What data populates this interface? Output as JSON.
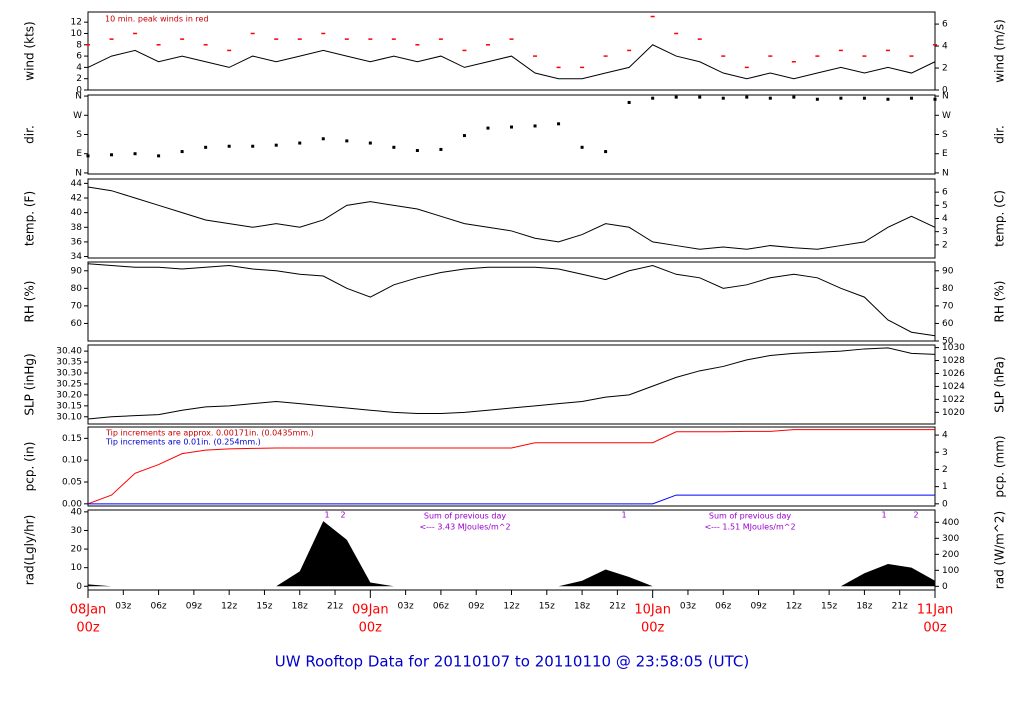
{
  "title": "UW Rooftop Data for 20110107  to  20110110 @ 23:58:05  (UTC)",
  "x": [
    0,
    2,
    4,
    6,
    8,
    10,
    12,
    14,
    16,
    18,
    20,
    22,
    24,
    26,
    28,
    30,
    32,
    34,
    36,
    38,
    40,
    42,
    44,
    46,
    48,
    50,
    52,
    54,
    56,
    58,
    60,
    62,
    64,
    66,
    68,
    70,
    72
  ],
  "xlim": [
    0,
    72
  ],
  "xticks": [
    {
      "value": 3,
      "label": "03z"
    },
    {
      "value": 6,
      "label": "06z"
    },
    {
      "value": 9,
      "label": "09z"
    },
    {
      "value": 12,
      "label": "12z"
    },
    {
      "value": 15,
      "label": "15z"
    },
    {
      "value": 18,
      "label": "18z"
    },
    {
      "value": 21,
      "label": "21z"
    },
    {
      "value": 27,
      "label": "03z"
    },
    {
      "value": 30,
      "label": "06z"
    },
    {
      "value": 33,
      "label": "09z"
    },
    {
      "value": 36,
      "label": "12z"
    },
    {
      "value": 39,
      "label": "15z"
    },
    {
      "value": 42,
      "label": "18z"
    },
    {
      "value": 45,
      "label": "21z"
    },
    {
      "value": 51,
      "label": "03z"
    },
    {
      "value": 54,
      "label": "06z"
    },
    {
      "value": 57,
      "label": "09z"
    },
    {
      "value": 60,
      "label": "12z"
    },
    {
      "value": 63,
      "label": "15z"
    },
    {
      "value": 66,
      "label": "18z"
    },
    {
      "value": 69,
      "label": "21z"
    }
  ],
  "day_ticks": [
    {
      "value": 0,
      "date": "08Jan",
      "hour": "00z"
    },
    {
      "value": 24,
      "date": "09Jan",
      "hour": "00z"
    },
    {
      "value": 48,
      "date": "10Jan",
      "hour": "00z"
    },
    {
      "value": 72,
      "date": "11Jan",
      "hour": "00z"
    }
  ],
  "chart_data": [
    {
      "type": "line",
      "ylabel": "wind (kts)",
      "y2label": "wind (m/s)",
      "ylim": [
        0,
        13.8
      ],
      "yticks": [
        0,
        2,
        4,
        6,
        8,
        10,
        12
      ],
      "y2lim": [
        0,
        7.1
      ],
      "y2ticks": [
        0,
        2,
        4,
        6
      ],
      "annotations": [
        {
          "text": "10 min. peak winds in red",
          "color": "#cc0000"
        }
      ],
      "series": [
        {
          "name": "wind",
          "style": "line",
          "color": "#000000",
          "values": [
            4,
            6,
            7,
            5,
            6,
            5,
            4,
            6,
            5,
            6,
            7,
            6,
            5,
            6,
            5,
            6,
            4,
            5,
            6,
            3,
            2,
            2,
            3,
            4,
            8,
            6,
            5,
            3,
            2,
            3,
            2,
            3,
            4,
            3,
            4,
            3,
            5
          ]
        },
        {
          "name": "peak",
          "style": "dash",
          "color": "#ff0000",
          "values": [
            8,
            9,
            10,
            8,
            9,
            8,
            7,
            10,
            9,
            9,
            10,
            9,
            9,
            9,
            8,
            9,
            7,
            8,
            9,
            6,
            4,
            4,
            6,
            7,
            13,
            10,
            9,
            6,
            4,
            6,
            5,
            6,
            7,
            6,
            7,
            6,
            8
          ]
        }
      ]
    },
    {
      "type": "scatter",
      "ylabel": "dir.",
      "y2label": "dir.",
      "ylim": [
        -5,
        365
      ],
      "yticks": [
        {
          "value": 0,
          "label": "N"
        },
        {
          "value": 90,
          "label": "E"
        },
        {
          "value": 180,
          "label": "S"
        },
        {
          "value": 270,
          "label": "W"
        },
        {
          "value": 360,
          "label": "N"
        }
      ],
      "y2lim": [
        -5,
        365
      ],
      "y2ticks": [
        {
          "value": 0,
          "label": "N"
        },
        {
          "value": 90,
          "label": "E"
        },
        {
          "value": 180,
          "label": "S"
        },
        {
          "value": 270,
          "label": "W"
        },
        {
          "value": 360,
          "label": "N"
        }
      ],
      "series": [
        {
          "name": "dir",
          "style": "dots",
          "color": "#000000",
          "values": [
            80,
            85,
            90,
            80,
            100,
            120,
            125,
            125,
            130,
            140,
            160,
            150,
            140,
            120,
            105,
            110,
            175,
            210,
            215,
            220,
            230,
            120,
            100,
            330,
            350,
            355,
            355,
            350,
            355,
            350,
            355,
            345,
            350,
            350,
            345,
            350,
            345
          ]
        }
      ]
    },
    {
      "type": "line",
      "ylabel": "temp. (F)",
      "y2label": "temp. (C)",
      "ylim": [
        33.8,
        44.6
      ],
      "yticks": [
        34,
        36,
        38,
        40,
        42,
        44
      ],
      "y2lim": [
        1,
        7
      ],
      "y2ticks": [
        2,
        3,
        4,
        5,
        6
      ],
      "series": [
        {
          "name": "temp",
          "style": "line",
          "color": "#000000",
          "values": [
            43.5,
            43,
            42,
            41,
            40,
            39,
            38.5,
            38,
            38.5,
            38,
            39,
            41,
            41.5,
            41,
            40.5,
            39.5,
            38.5,
            38,
            37.5,
            36.5,
            36,
            37,
            38.5,
            38,
            36,
            35.5,
            35,
            35.3,
            35,
            35.5,
            35.2,
            35,
            35.5,
            36,
            38,
            39.5,
            38
          ]
        }
      ]
    },
    {
      "type": "line",
      "ylabel": "RH (%)",
      "y2label": "RH (%)",
      "ylim": [
        50,
        95
      ],
      "yticks": [
        60,
        70,
        80,
        90
      ],
      "y2lim": [
        50,
        95
      ],
      "y2ticks": [
        50,
        60,
        70,
        80,
        90
      ],
      "series": [
        {
          "name": "RH",
          "style": "line",
          "color": "#000000",
          "values": [
            94,
            93,
            92,
            92,
            91,
            92,
            93,
            91,
            90,
            88,
            87,
            80,
            75,
            82,
            86,
            89,
            91,
            92,
            92,
            92,
            91,
            88,
            85,
            90,
            93,
            88,
            86,
            80,
            82,
            86,
            88,
            86,
            80,
            75,
            62,
            55,
            53
          ]
        }
      ]
    },
    {
      "type": "line",
      "ylabel": "SLP (inHg)",
      "y2label": "SLP (hPa)",
      "ylim": [
        30.067,
        30.428
      ],
      "yticks": [
        {
          "value": 30.1,
          "label": "30.10"
        },
        {
          "value": 30.15,
          "label": "30.15"
        },
        {
          "value": 30.2,
          "label": "30.20"
        },
        {
          "value": 30.25,
          "label": "30.25"
        },
        {
          "value": 30.3,
          "label": "30.30"
        },
        {
          "value": 30.35,
          "label": "30.35"
        },
        {
          "value": 30.4,
          "label": "30.40"
        }
      ],
      "y2lim": [
        1018.2,
        1030.4
      ],
      "y2ticks": [
        1020,
        1022,
        1024,
        1026,
        1028,
        1030
      ],
      "series": [
        {
          "name": "SLP",
          "style": "line",
          "color": "#000000",
          "values": [
            30.09,
            30.1,
            30.105,
            30.11,
            30.13,
            30.145,
            30.15,
            30.16,
            30.17,
            30.16,
            30.15,
            30.14,
            30.13,
            30.12,
            30.115,
            30.115,
            30.12,
            30.13,
            30.14,
            30.15,
            30.16,
            30.17,
            30.19,
            30.2,
            30.24,
            30.28,
            30.31,
            30.33,
            30.36,
            30.38,
            30.39,
            30.395,
            30.4,
            30.41,
            30.415,
            30.39,
            30.385
          ]
        }
      ]
    },
    {
      "type": "line",
      "ylabel": "pcp. (in)",
      "y2label": "pcp. (mm)",
      "ylim": [
        -0.005,
        0.176
      ],
      "yticks": [
        {
          "value": 0,
          "label": "0.00"
        },
        {
          "value": 0.05,
          "label": "0.05"
        },
        {
          "value": 0.1,
          "label": "0.10"
        },
        {
          "value": 0.15,
          "label": "0.15"
        }
      ],
      "y2lim": [
        -0.127,
        4.47
      ],
      "y2ticks": [
        0,
        1,
        2,
        3,
        4
      ],
      "annotations": [
        {
          "text": "Tip increments are approx. 0.00171in. (0.0435mm.)",
          "color": "#cc0000"
        },
        {
          "text": "Tip increments are 0.01in. (0.254mm.)",
          "color": "#0000cc"
        }
      ],
      "series": [
        {
          "name": "tip-approx",
          "style": "line",
          "color": "#ff0000",
          "values": [
            0,
            0.02,
            0.07,
            0.09,
            0.115,
            0.123,
            0.126,
            0.127,
            0.128,
            0.128,
            0.128,
            0.128,
            0.128,
            0.128,
            0.128,
            0.128,
            0.128,
            0.128,
            0.128,
            0.14,
            0.14,
            0.14,
            0.14,
            0.14,
            0.14,
            0.165,
            0.165,
            0.165,
            0.166,
            0.166,
            0.17,
            0.17,
            0.17,
            0.17,
            0.17,
            0.17,
            0.17
          ]
        },
        {
          "name": "tip",
          "style": "line",
          "color": "#0000ff",
          "values": [
            0,
            0,
            0,
            0,
            0,
            0,
            0,
            0,
            0,
            0,
            0,
            0,
            0,
            0,
            0,
            0,
            0,
            0,
            0,
            0,
            0,
            0,
            0,
            0,
            0,
            0.02,
            0.02,
            0.02,
            0.02,
            0.02,
            0.02,
            0.02,
            0.02,
            0.02,
            0.02,
            0.02,
            0.02
          ]
        }
      ]
    },
    {
      "type": "area",
      "ylabel": "rad(Lgly/hr)",
      "y2label": "rad (W/m^2)",
      "ylim": [
        -2,
        41
      ],
      "yticks": [
        0,
        10,
        20,
        30,
        40
      ],
      "y2lim": [
        -23,
        477
      ],
      "y2ticks": [
        0,
        100,
        200,
        300,
        400
      ],
      "annotations": [
        {
          "text": "Sum of previous day",
          "color": "#9900cc"
        },
        {
          "text": "<--- 3.43 MJoules/m^2",
          "color": "#9900cc"
        },
        {
          "text": "Sum of previous day",
          "color": "#9900cc"
        },
        {
          "text": "<--- 1.51 MJoules/m^2",
          "color": "#9900cc"
        },
        {
          "text": "1",
          "color": "#9900cc"
        },
        {
          "text": "2",
          "color": "#9900cc"
        },
        {
          "text": "1",
          "color": "#9900cc"
        },
        {
          "text": "1",
          "color": "#9900cc"
        },
        {
          "text": "2",
          "color": "#9900cc"
        }
      ],
      "series": [
        {
          "name": "rad",
          "style": "area",
          "color": "#000000",
          "values": [
            1,
            0,
            0,
            0,
            0,
            0,
            0,
            0,
            0,
            8,
            35,
            25,
            2,
            0,
            0,
            0,
            0,
            0,
            0,
            0,
            0,
            3,
            9,
            5,
            0,
            0,
            0,
            0,
            0,
            0,
            0,
            0,
            0,
            7,
            12,
            10,
            3
          ]
        }
      ]
    }
  ]
}
